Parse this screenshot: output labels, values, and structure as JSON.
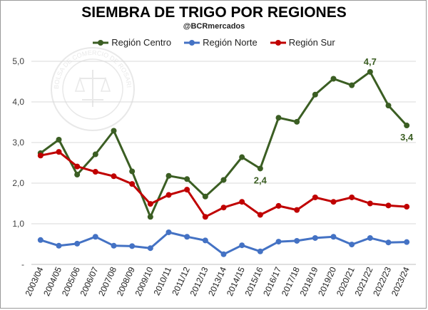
{
  "title": "SIEMBRA DE TRIGO POR REGIONES",
  "subtitle": "@BCRmercados",
  "watermark_text": "BOLSA DE COMERCIO DE ROSARIO",
  "colors": {
    "centro": "#3b5e23",
    "norte": "#4472c4",
    "sur": "#c00000",
    "grid": "#d9d9d9",
    "axis": "#bfbfbf"
  },
  "chart_data": {
    "type": "line",
    "title": "SIEMBRA DE TRIGO POR REGIONES",
    "xlabel": "",
    "ylabel": "",
    "ylim": [
      0,
      5
    ],
    "y_ticks": [
      "-",
      "1,0",
      "2,0",
      "3,0",
      "4,0",
      "5,0"
    ],
    "grid": true,
    "legend_position": "top",
    "categories": [
      "2003/04",
      "2004/05",
      "2005/06",
      "2006/07",
      "2007/08",
      "2008/09",
      "2009/10",
      "2010/11",
      "2011/12",
      "2012/13",
      "2013/14",
      "2014/15",
      "2015/16",
      "2016/17",
      "2017/18",
      "2018/19",
      "2019/20",
      "2020/21",
      "2021/22",
      "2022/23",
      "2023/24"
    ],
    "series": [
      {
        "name": "Región Centro",
        "color_key": "centro",
        "values": [
          2.74,
          3.07,
          2.21,
          2.71,
          3.29,
          2.29,
          1.17,
          2.18,
          2.1,
          1.67,
          2.08,
          2.64,
          2.36,
          3.61,
          3.51,
          4.18,
          4.57,
          4.41,
          4.74,
          3.91,
          3.42
        ]
      },
      {
        "name": "Región Norte",
        "color_key": "norte",
        "values": [
          0.6,
          0.46,
          0.51,
          0.68,
          0.46,
          0.45,
          0.4,
          0.79,
          0.68,
          0.59,
          0.25,
          0.47,
          0.32,
          0.56,
          0.58,
          0.65,
          0.68,
          0.49,
          0.65,
          0.54,
          0.55
        ]
      },
      {
        "name": "Región Sur",
        "color_key": "sur",
        "values": [
          2.68,
          2.77,
          2.41,
          2.28,
          2.17,
          1.98,
          1.49,
          1.71,
          1.84,
          1.17,
          1.4,
          1.54,
          1.22,
          1.44,
          1.34,
          1.65,
          1.54,
          1.65,
          1.5,
          1.45,
          1.42
        ]
      }
    ],
    "annotations": [
      {
        "series": "Región Centro",
        "category": "2015/16",
        "text": "2,4",
        "placement": "below"
      },
      {
        "series": "Región Centro",
        "category": "2021/22",
        "text": "4,7",
        "placement": "above"
      },
      {
        "series": "Región Centro",
        "category": "2023/24",
        "text": "3,4",
        "placement": "below"
      }
    ]
  }
}
